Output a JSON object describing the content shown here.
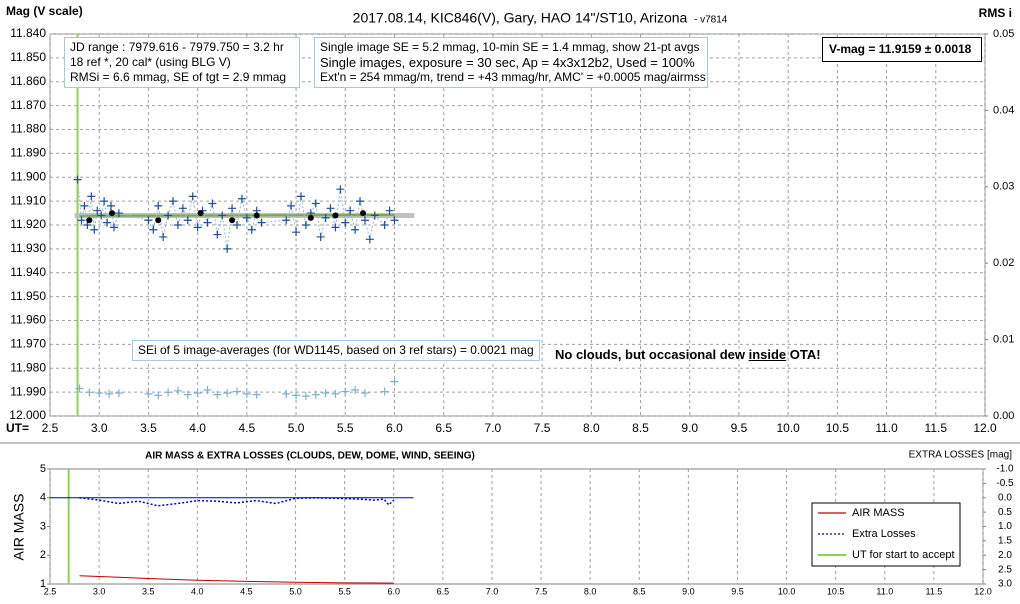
{
  "chart_data": [
    {
      "type": "scatter",
      "title": "2017.08.14,  KIC846(V),  Gary,  HAO  14\"/ST10,  Arizona",
      "title_suffix": "- v7814",
      "y_label": "Mag (V scale)",
      "y2_label": "RMS i",
      "x_label": "UT=",
      "xlim": [
        2.5,
        12.0
      ],
      "xticks": [
        2.5,
        {
          "value": 3.0,
          "label": "3.0"
        },
        3.5,
        {
          "value": 4.0,
          "label": "4.0"
        },
        4.5,
        {
          "value": 5.0,
          "label": "5.0"
        },
        5.5,
        {
          "value": 6.0,
          "label": "6.0"
        },
        6.5,
        {
          "value": 7.0,
          "label": "7.0"
        },
        7.5,
        {
          "value": 8.0,
          "label": "8.0"
        },
        8.5,
        {
          "value": 9.0,
          "label": "9.0"
        },
        9.5,
        {
          "value": 10.0,
          "label": "10.0"
        },
        10.5,
        {
          "value": 11.0,
          "label": "11.0"
        },
        11.5,
        {
          "value": 12.0,
          "label": "12.0"
        }
      ],
      "ylim": [
        11.84,
        12.0
      ],
      "y_inverted": true,
      "yticks": [
        {
          "value": 11.84,
          "label": "11.840"
        },
        {
          "value": 11.85,
          "label": "11.850"
        },
        {
          "value": 11.86,
          "label": "11.860"
        },
        {
          "value": 11.87,
          "label": "11.870"
        },
        {
          "value": 11.88,
          "label": "11.880"
        },
        {
          "value": 11.89,
          "label": "11.890"
        },
        {
          "value": 11.9,
          "label": "11.900"
        },
        {
          "value": 11.91,
          "label": "11.910"
        },
        {
          "value": 11.92,
          "label": "11.920"
        },
        {
          "value": 11.93,
          "label": "11.930"
        },
        {
          "value": 11.94,
          "label": "11.940"
        },
        {
          "value": 11.95,
          "label": "11.950"
        },
        {
          "value": 11.96,
          "label": "11.960"
        },
        {
          "value": 11.97,
          "label": "11.970"
        },
        {
          "value": 11.98,
          "label": "11.980"
        },
        {
          "value": 11.99,
          "label": "11.990"
        },
        {
          "value": 12.0,
          "label": "12.000"
        }
      ],
      "y2lim": [
        0,
        0.05
      ],
      "y2ticks": [
        {
          "value": 0,
          "label": "0.00"
        },
        0.01,
        0.02,
        0.03,
        0.04,
        0.05
      ],
      "grid": true,
      "start_line": {
        "x": 2.78,
        "color": "#92d050"
      },
      "series": [
        {
          "color": "#c0c0c0",
          "marker": "none",
          "line_width": 5,
          "x": [
            2.75,
            6.2
          ],
          "values": [
            11.916,
            11.916
          ]
        },
        {
          "color": "#70ad47",
          "marker": "none",
          "line_width": 2,
          "x": [
            2.8,
            6.0
          ],
          "values": [
            11.9162,
            11.9158
          ]
        },
        {
          "color": "#1f4e9c",
          "marker": "plus",
          "connect": "#8fb4dc",
          "x": [
            2.78,
            2.82,
            2.85,
            2.88,
            2.92,
            2.95,
            2.98,
            3.02,
            3.05,
            3.08,
            3.12,
            3.15,
            3.2,
            3.5,
            3.55,
            3.6,
            3.65,
            3.7,
            3.75,
            3.8,
            3.85,
            3.9,
            3.95,
            4.0,
            4.05,
            4.1,
            4.15,
            4.2,
            4.25,
            4.3,
            4.35,
            4.4,
            4.45,
            4.5,
            4.55,
            4.6,
            4.65,
            4.9,
            4.95,
            5.0,
            5.05,
            5.1,
            5.15,
            5.2,
            5.25,
            5.3,
            5.35,
            5.4,
            5.45,
            5.5,
            5.55,
            5.6,
            5.65,
            5.7,
            5.75,
            5.8,
            5.9,
            5.95,
            6.0
          ],
          "values": [
            11.901,
            11.918,
            11.912,
            11.92,
            11.908,
            11.922,
            11.914,
            11.916,
            11.91,
            11.919,
            11.912,
            11.921,
            11.915,
            11.918,
            11.922,
            11.912,
            11.925,
            11.916,
            11.91,
            11.92,
            11.913,
            11.918,
            11.908,
            11.921,
            11.914,
            11.919,
            11.911,
            11.924,
            11.916,
            11.93,
            11.913,
            11.92,
            11.909,
            11.917,
            11.922,
            11.914,
            11.919,
            11.918,
            11.912,
            11.923,
            11.908,
            11.92,
            11.915,
            11.911,
            11.925,
            11.917,
            11.913,
            11.921,
            11.905,
            11.919,
            11.914,
            11.922,
            11.91,
            11.918,
            11.926,
            11.916,
            11.92,
            11.914,
            11.918
          ]
        },
        {
          "color": "#000000",
          "marker": "dot",
          "x": [
            2.9,
            3.13,
            3.6,
            4.03,
            4.35,
            4.6,
            5.15,
            5.4,
            5.68
          ],
          "values": [
            11.918,
            11.915,
            11.918,
            11.915,
            11.918,
            11.916,
            11.917,
            11.916,
            11.915
          ]
        },
        {
          "color": "#7fb2cf",
          "marker": "plus",
          "axis": "y2",
          "x": [
            2.8,
            2.9,
            3.0,
            3.1,
            3.2,
            3.5,
            3.6,
            3.7,
            3.8,
            3.9,
            4.0,
            4.1,
            4.2,
            4.3,
            4.4,
            4.5,
            4.6,
            4.9,
            5.0,
            5.1,
            5.2,
            5.3,
            5.4,
            5.5,
            5.6,
            5.7,
            5.9,
            6.0
          ],
          "values": [
            0.0036,
            0.0031,
            0.003,
            0.0029,
            0.003,
            0.0029,
            0.0027,
            0.0031,
            0.0033,
            0.0028,
            0.003,
            0.0034,
            0.0028,
            0.003,
            0.0032,
            0.0029,
            0.0028,
            0.0029,
            0.0027,
            0.0026,
            0.0028,
            0.003,
            0.0029,
            0.0032,
            0.0034,
            0.003,
            0.0032,
            0.0045
          ]
        }
      ],
      "info_box": [
        "JD range : 7979.616 - 7979.750 =  3.2 hr",
        "18 ref *, 20 cal* (using BLG V)",
        "RMSi = 6.6 mmag, SE of tgt = 2.9 mmag"
      ],
      "settings_box": [
        "Single image SE = 5.2 mmag, 10-min SE = 1.4 mmag, show 21-pt avgs",
        "Single images, exposure = 30 sec, Ap = 4x3x12b2, Used = 100%",
        "Ext'n = 254 mmag/m, trend = +43 mmag/hr, AMC' = +0.0005 mag/airmss"
      ],
      "vmag_box": "V-mag = 11.9159 ± 0.0018",
      "sei_box": "SEi of 5 image-averages (for WD1145, based on 3 ref stars) = 0.0021 mag",
      "note": [
        "No clouds, but occasional dew ",
        "inside",
        " OTA!"
      ]
    },
    {
      "type": "line",
      "title": "AIR MASS & EXTRA LOSSES (CLOUDS, DEW, DOME, WIND, SEEING)",
      "y_label": "AIR MASS",
      "y2_label": "EXTRA LOSSES [mag]",
      "xlim": [
        2.5,
        12.0
      ],
      "xticks": [
        2.5,
        {
          "value": 3.0,
          "label": "3.0"
        },
        3.5,
        {
          "value": 4.0,
          "label": "4.0"
        },
        4.5,
        {
          "value": 5.0,
          "label": "5.0"
        },
        5.5,
        {
          "value": 6.0,
          "label": "6.0"
        },
        6.5,
        {
          "value": 7.0,
          "label": "7.0"
        },
        7.5,
        {
          "value": 8.0,
          "label": "8.0"
        },
        8.5,
        {
          "value": 9.0,
          "label": "9.0"
        },
        9.5,
        {
          "value": 10.0,
          "label": "10.0"
        },
        10.5,
        {
          "value": 11.0,
          "label": "11.0"
        },
        11.5,
        {
          "value": 12.0,
          "label": "12.0"
        }
      ],
      "ylim": [
        1,
        5
      ],
      "yticks": [
        1,
        2,
        3,
        4,
        5
      ],
      "y2lim": [
        -1.0,
        3.0
      ],
      "y2_inverted": true,
      "y2ticks": [
        {
          "value": -1.0,
          "label": "-1.0"
        },
        -0.5,
        {
          "value": 0.0,
          "label": "0.0"
        },
        0.5,
        {
          "value": 1.0,
          "label": "1.0"
        },
        1.5,
        {
          "value": 2.0,
          "label": "2.0"
        },
        2.5,
        {
          "value": 3.0,
          "label": "3.0"
        }
      ],
      "grid": true,
      "start_line": {
        "name": "UT for start to accept",
        "x": 2.69,
        "color": "#92d050"
      },
      "series": [
        {
          "name": "AIR MASS",
          "color": "#c00000",
          "line_width": 1,
          "x": [
            2.8,
            3.0,
            3.5,
            4.0,
            4.5,
            5.0,
            5.5,
            6.0
          ],
          "values": [
            1.29,
            1.26,
            1.19,
            1.13,
            1.09,
            1.06,
            1.04,
            1.03
          ]
        },
        {
          "color": "#0000c0",
          "axis": "y2",
          "line_width": 1,
          "x": [
            2.5,
            6.2
          ],
          "values": [
            0.0,
            0.0
          ]
        },
        {
          "name": "Extra Losses",
          "color": "#0000c0",
          "axis": "y2",
          "dashed": true,
          "line_width": 1.5,
          "x": [
            2.8,
            3.0,
            3.2,
            3.4,
            3.6,
            3.8,
            4.0,
            4.2,
            4.4,
            4.6,
            4.8,
            5.0,
            5.2,
            5.4,
            5.6,
            5.8,
            5.9,
            5.95,
            6.0
          ],
          "values": [
            0.0,
            0.08,
            0.2,
            0.12,
            0.28,
            0.2,
            0.1,
            0.12,
            0.18,
            0.1,
            0.2,
            0.02,
            0.0,
            0.02,
            0.04,
            0.08,
            0.05,
            0.25,
            0.08
          ]
        }
      ]
    }
  ]
}
